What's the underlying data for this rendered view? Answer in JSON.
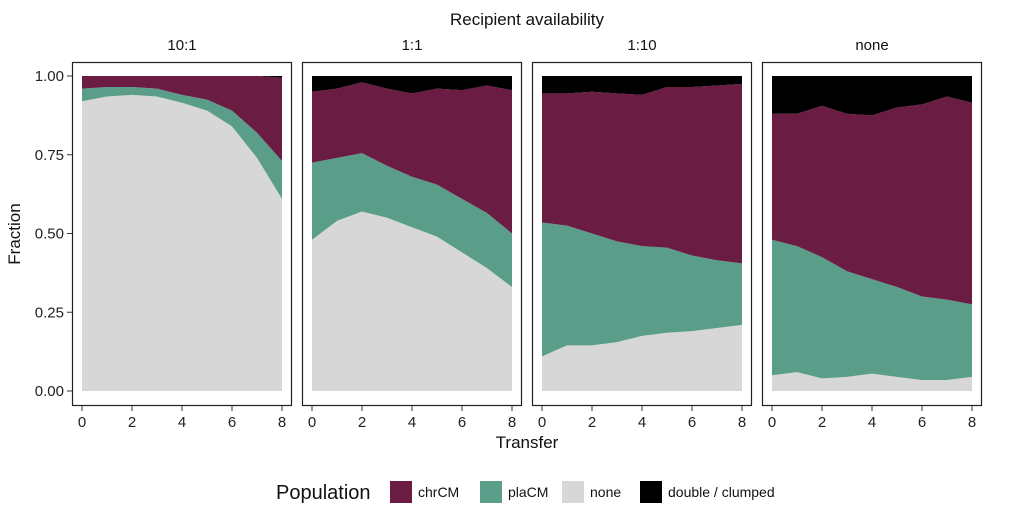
{
  "chart_data": {
    "type": "area",
    "title": "Recipient availability",
    "xlabel": "Transfer",
    "ylabel": "Fraction",
    "xlim": [
      0,
      8
    ],
    "ylim": [
      0,
      1
    ],
    "x": [
      0,
      1,
      2,
      3,
      4,
      5,
      6,
      7,
      8
    ],
    "x_ticks": [
      0,
      2,
      4,
      6,
      8
    ],
    "y_ticks": [
      0.0,
      0.25,
      0.5,
      0.75,
      1.0
    ],
    "y_tick_labels": [
      "0.00",
      "0.25",
      "0.50",
      "0.75",
      "1.00"
    ],
    "stack_order": [
      "none",
      "plaCM",
      "chrCM",
      "double / clumped"
    ],
    "colors": {
      "chrCM": "#6a1c42",
      "plaCM": "#5a9e8a",
      "none": "#d7d7d7",
      "double / clumped": "#000000"
    },
    "legend": {
      "title": "Population",
      "position": "bottom",
      "items": [
        "chrCM",
        "plaCM",
        "none",
        "double / clumped"
      ]
    },
    "panels": [
      {
        "label": "10:1",
        "series": [
          {
            "name": "none",
            "values": [
              0.92,
              0.935,
              0.94,
              0.935,
              0.915,
              0.89,
              0.84,
              0.74,
              0.61
            ]
          },
          {
            "name": "plaCM",
            "values": [
              0.04,
              0.03,
              0.025,
              0.025,
              0.025,
              0.035,
              0.05,
              0.08,
              0.12
            ]
          },
          {
            "name": "chrCM",
            "values": [
              0.04,
              0.035,
              0.035,
              0.04,
              0.06,
              0.075,
              0.11,
              0.18,
              0.265
            ]
          },
          {
            "name": "double / clumped",
            "values": [
              0.0,
              0.0,
              0.0,
              0.0,
              0.0,
              0.0,
              0.0,
              0.0,
              0.005
            ]
          }
        ]
      },
      {
        "label": "1:1",
        "series": [
          {
            "name": "none",
            "values": [
              0.48,
              0.54,
              0.57,
              0.55,
              0.52,
              0.49,
              0.44,
              0.39,
              0.33
            ]
          },
          {
            "name": "plaCM",
            "values": [
              0.245,
              0.2,
              0.185,
              0.165,
              0.16,
              0.165,
              0.17,
              0.175,
              0.17
            ]
          },
          {
            "name": "chrCM",
            "values": [
              0.225,
              0.22,
              0.225,
              0.245,
              0.265,
              0.305,
              0.345,
              0.405,
              0.455
            ]
          },
          {
            "name": "double / clumped",
            "values": [
              0.05,
              0.04,
              0.02,
              0.04,
              0.055,
              0.04,
              0.045,
              0.03,
              0.045
            ]
          }
        ]
      },
      {
        "label": "1:10",
        "series": [
          {
            "name": "none",
            "values": [
              0.11,
              0.145,
              0.145,
              0.155,
              0.175,
              0.185,
              0.19,
              0.2,
              0.21
            ]
          },
          {
            "name": "plaCM",
            "values": [
              0.425,
              0.38,
              0.355,
              0.32,
              0.285,
              0.27,
              0.24,
              0.215,
              0.195
            ]
          },
          {
            "name": "chrCM",
            "values": [
              0.41,
              0.42,
              0.45,
              0.47,
              0.48,
              0.51,
              0.535,
              0.555,
              0.57
            ]
          },
          {
            "name": "double / clumped",
            "values": [
              0.055,
              0.055,
              0.05,
              0.055,
              0.06,
              0.035,
              0.035,
              0.03,
              0.025
            ]
          }
        ]
      },
      {
        "label": "none",
        "series": [
          {
            "name": "none",
            "values": [
              0.05,
              0.06,
              0.04,
              0.045,
              0.055,
              0.045,
              0.035,
              0.035,
              0.045
            ]
          },
          {
            "name": "plaCM",
            "values": [
              0.43,
              0.4,
              0.385,
              0.335,
              0.3,
              0.285,
              0.265,
              0.255,
              0.23
            ]
          },
          {
            "name": "chrCM",
            "values": [
              0.4,
              0.42,
              0.48,
              0.5,
              0.52,
              0.57,
              0.61,
              0.645,
              0.64
            ]
          },
          {
            "name": "double / clumped",
            "values": [
              0.12,
              0.12,
              0.095,
              0.12,
              0.125,
              0.1,
              0.09,
              0.065,
              0.085
            ]
          }
        ]
      }
    ]
  }
}
